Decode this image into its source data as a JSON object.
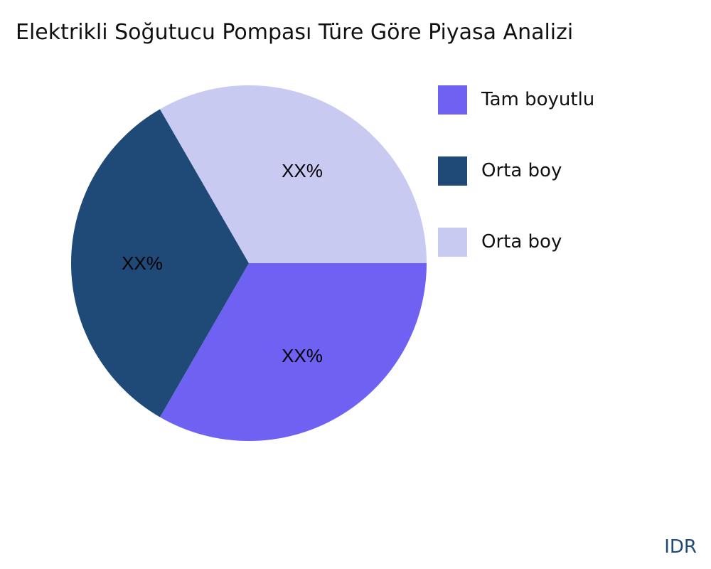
{
  "chart_data": {
    "type": "pie",
    "title": "Elektrikli Soğutucu Pompası Türe Göre Piyasa Analizi",
    "slices": [
      {
        "name": "Tam boyutlu",
        "value": 33.33,
        "label": "XX%",
        "color": "#6f61f2"
      },
      {
        "name": "Orta boy",
        "value": 33.33,
        "label": "XX%",
        "color": "#1f4a78"
      },
      {
        "name": "Orta boy",
        "value": 33.33,
        "label": "XX%",
        "color": "#c9caf1"
      }
    ],
    "legend_position": "right"
  },
  "brand": "IDR"
}
